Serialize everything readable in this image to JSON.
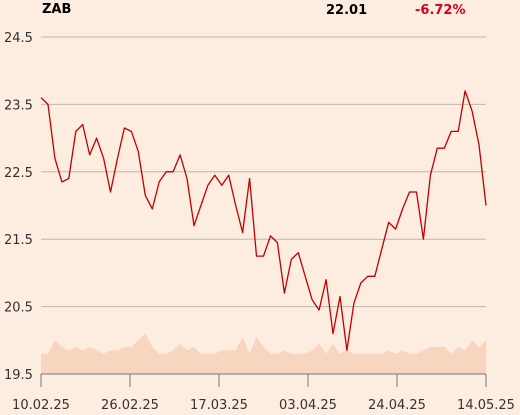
{
  "header": {
    "ticker": "ZAB",
    "price": "22.01",
    "change": "-6.72%",
    "change_color": "#d6001c"
  },
  "colors": {
    "background": "#fcede0",
    "price_line": "#c00000",
    "volume_area": "#f8d5bf",
    "grid": "#bfb6ae",
    "axis": "#777777"
  },
  "chart_data": {
    "type": "line",
    "title": "",
    "xlabel": "",
    "ylabel": "",
    "ylim": [
      19.5,
      24.5
    ],
    "y_ticks": [
      "24.5",
      "23.5",
      "22.5",
      "21.5",
      "20.5",
      "19.5"
    ],
    "x_ticks": [
      "10.02.25",
      "26.02.25",
      "17.03.25",
      "03.04.25",
      "24.04.25",
      "14.05.25"
    ],
    "grid": "horizontal",
    "series": [
      {
        "kind": "price",
        "values": [
          23.6,
          23.5,
          22.7,
          22.35,
          22.4,
          23.1,
          23.2,
          22.75,
          23.0,
          22.7,
          22.2,
          22.7,
          23.15,
          23.1,
          22.8,
          22.15,
          21.95,
          22.35,
          22.5,
          22.5,
          22.75,
          22.4,
          21.7,
          22.0,
          22.3,
          22.45,
          22.3,
          22.45,
          22.0,
          21.6,
          22.4,
          21.25,
          21.25,
          21.55,
          21.45,
          20.7,
          21.2,
          21.3,
          20.95,
          20.6,
          20.45,
          20.9,
          20.1,
          20.65,
          19.85,
          20.55,
          20.85,
          20.95,
          20.95,
          21.35,
          21.75,
          21.65,
          21.95,
          22.2,
          22.2,
          21.5,
          22.45,
          22.85,
          22.85,
          23.1,
          23.1,
          23.7,
          23.4,
          22.9,
          22.0
        ]
      },
      {
        "kind": "volume",
        "values": [
          0.3,
          0.3,
          0.5,
          0.4,
          0.35,
          0.4,
          0.35,
          0.4,
          0.35,
          0.3,
          0.35,
          0.35,
          0.4,
          0.4,
          0.5,
          0.6,
          0.4,
          0.3,
          0.3,
          0.35,
          0.45,
          0.35,
          0.4,
          0.3,
          0.3,
          0.3,
          0.35,
          0.35,
          0.35,
          0.55,
          0.3,
          0.55,
          0.4,
          0.3,
          0.3,
          0.35,
          0.3,
          0.3,
          0.3,
          0.35,
          0.45,
          0.3,
          0.45,
          0.3,
          0.35,
          0.3,
          0.3,
          0.3,
          0.3,
          0.3,
          0.35,
          0.3,
          0.35,
          0.3,
          0.3,
          0.35,
          0.4,
          0.4,
          0.4,
          0.3,
          0.4,
          0.35,
          0.5,
          0.4,
          0.5
        ]
      }
    ]
  }
}
